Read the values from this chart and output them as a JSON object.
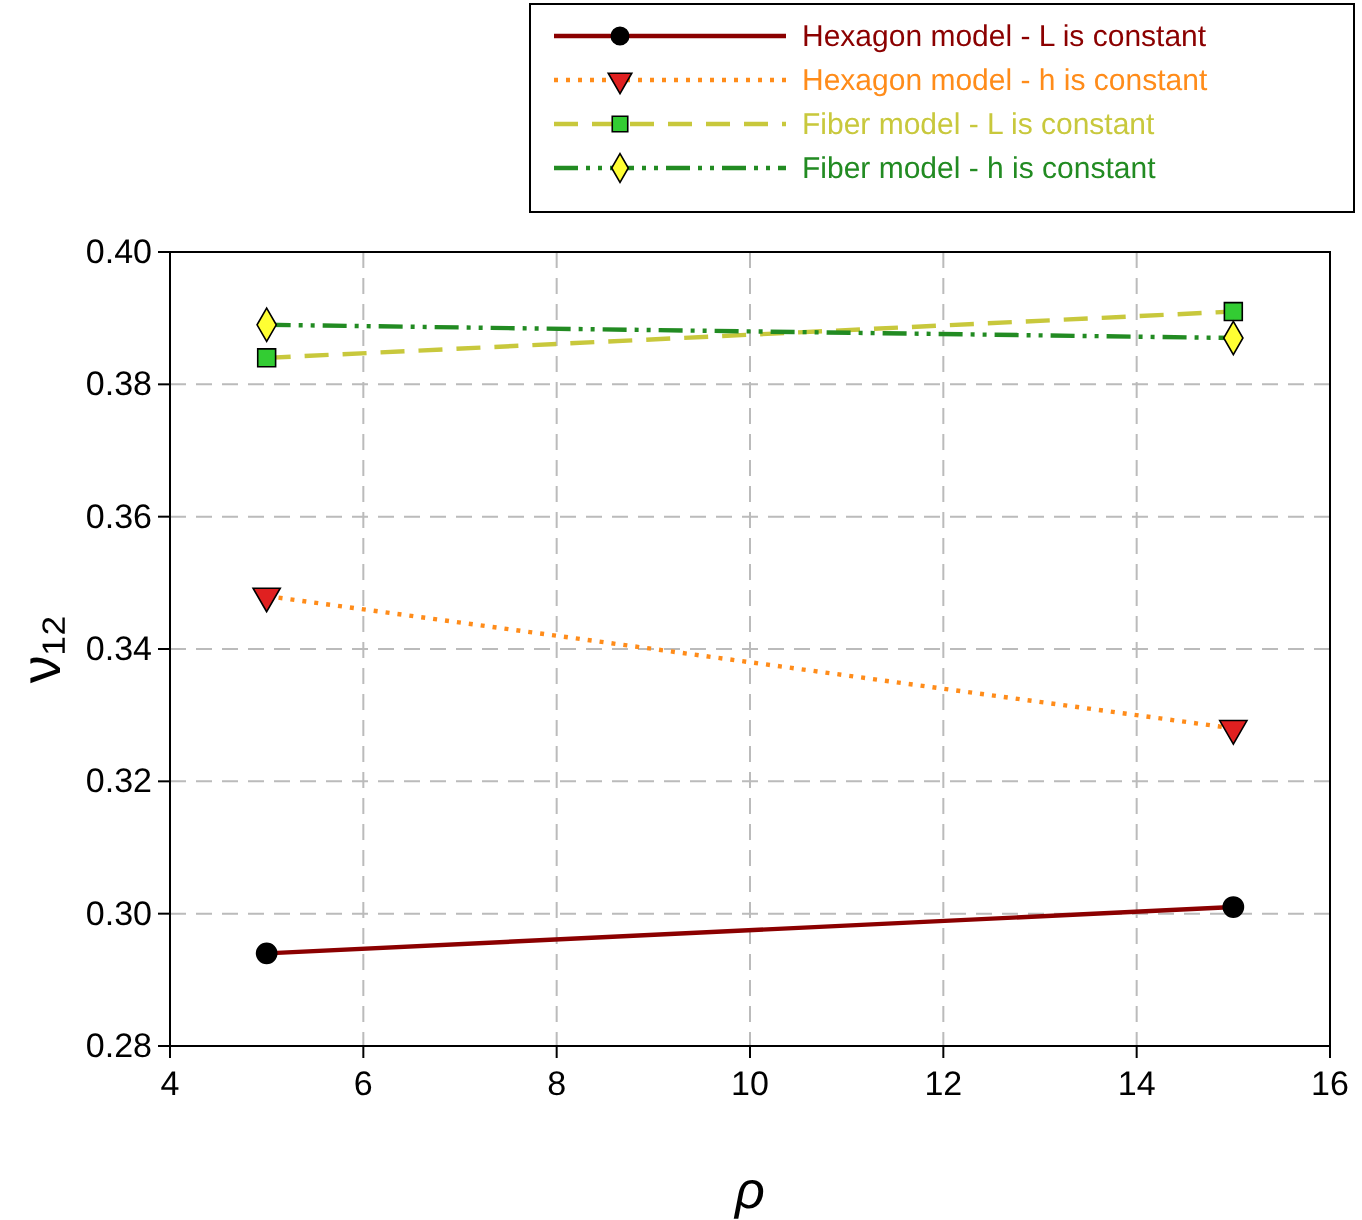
{
  "chart_data": {
    "type": "line",
    "xlabel": "ρ",
    "ylabel": "ν₁₂",
    "xlim": [
      4,
      16
    ],
    "xticks": [
      4,
      6,
      8,
      10,
      12,
      14,
      16
    ],
    "ylim": [
      0.28,
      0.4
    ],
    "yticks": [
      0.28,
      {
        "value": 0.3,
        "label": "0.30"
      },
      0.32,
      0.34,
      0.36,
      0.38,
      {
        "value": 0.4,
        "label": "0.40"
      }
    ],
    "grid": true,
    "legend": "top right",
    "x": [
      5,
      15
    ],
    "series": [
      {
        "name": "Hexagon model - L is constant",
        "color": "#8b0000",
        "marker": "circle",
        "colors": [
          "#000000",
          "#000000"
        ],
        "line_style": "solid",
        "values": [
          0.294,
          0.301
        ]
      },
      {
        "name": "Hexagon model - h is constant",
        "color": "#ff8c1a",
        "marker": "triangle-down",
        "colors": [
          "#e02020",
          "#e02020"
        ],
        "line_style": "dotted",
        "values": [
          0.348,
          0.328
        ]
      },
      {
        "name": "Fiber model - L is constant",
        "color": "#c8c83c",
        "marker": "square",
        "colors": [
          "#33cc33",
          "#33cc33"
        ],
        "line_style": "dashed",
        "values": [
          0.384,
          0.391
        ]
      },
      {
        "name": "Fiber model - h is constant",
        "color": "#228b22",
        "marker": "diamond",
        "colors": [
          "#ffff33",
          "#ffff33"
        ],
        "line_style": "dashdot",
        "values": [
          0.389,
          0.387
        ]
      }
    ]
  }
}
